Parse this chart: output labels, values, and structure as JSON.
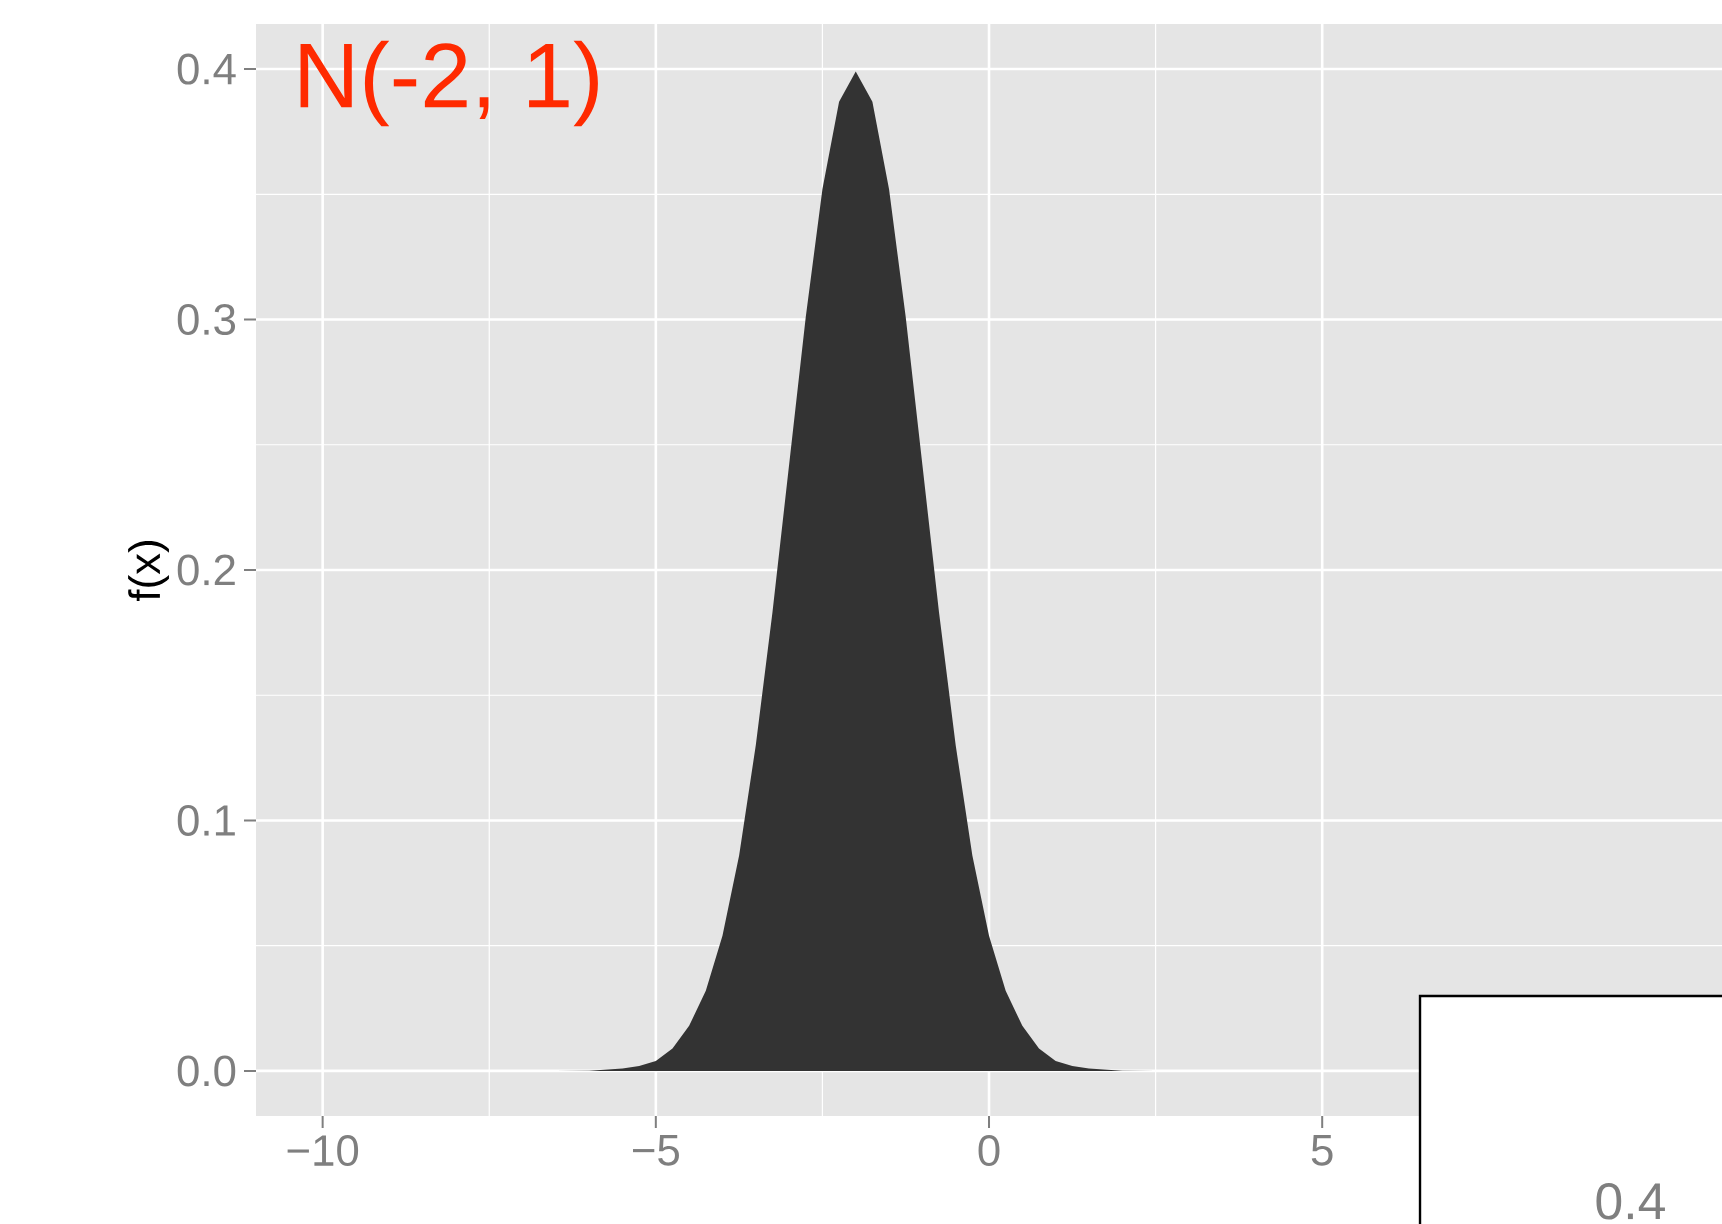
{
  "chart_data": {
    "type": "area",
    "title": "N(-2, 1)",
    "ylabel": "f(x)",
    "x": [
      -7,
      -6.5,
      -6,
      -5.5,
      -5.25,
      -5,
      -4.75,
      -4.5,
      -4.25,
      -4,
      -3.75,
      -3.5,
      -3.25,
      -3,
      -2.75,
      -2.5,
      -2.25,
      -2,
      -1.75,
      -1.5,
      -1.25,
      -1,
      -0.75,
      -0.5,
      -0.25,
      0,
      0.25,
      0.5,
      0.75,
      1,
      1.25,
      1.5,
      2,
      2.5,
      3
    ],
    "series": [
      {
        "color": "#333333",
        "values": [
          0,
          0,
          0.0001,
          0.001,
          0.002,
          0.004,
          0.009,
          0.018,
          0.032,
          0.054,
          0.086,
          0.13,
          0.183,
          0.242,
          0.301,
          0.352,
          0.387,
          0.399,
          0.387,
          0.352,
          0.301,
          0.242,
          0.183,
          0.13,
          0.086,
          0.054,
          0.032,
          0.018,
          0.009,
          0.004,
          0.002,
          0.001,
          0.0001,
          0,
          0
        ]
      }
    ],
    "xlim": [
      -11,
      11
    ],
    "ylim": [
      -0.018,
      0.418
    ],
    "xticks": [
      {
        "value": -10,
        "label": "−10"
      },
      {
        "value": -5,
        "label": "−5"
      },
      0,
      5
    ],
    "yticks": [
      {
        "value": 0,
        "label": "0.0"
      },
      0.1,
      0.2,
      0.3,
      0.4
    ],
    "grid": true,
    "annotations": [
      "0.4"
    ]
  }
}
